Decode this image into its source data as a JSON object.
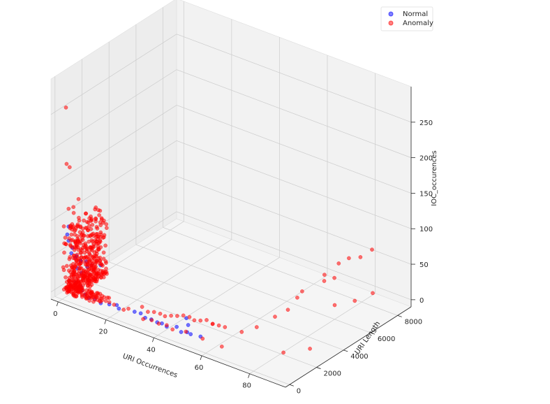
{
  "chart_data": {
    "type": "scatter",
    "title": "",
    "xlabel": "URI Occurrences",
    "ylabel": "URI Length",
    "zlabel": "IOC_occurences",
    "x_ticks": [
      "0",
      "20",
      "40",
      "60",
      "80"
    ],
    "y_ticks": [
      "0",
      "2000",
      "4000",
      "6000",
      "8000"
    ],
    "z_ticks": [
      "0",
      "50",
      "100",
      "150",
      "200",
      "250"
    ],
    "xlim": [
      -3,
      95
    ],
    "ylim": [
      -300,
      9000
    ],
    "zlim": [
      -10,
      300
    ],
    "legend": {
      "placement": "top-right",
      "entries": [
        "Normal",
        "Anomaly"
      ]
    },
    "colors": {
      "normal": "#0000ff",
      "anomaly": "#ff0000",
      "pane": "#f2f2f2",
      "grid": "#cccccc"
    },
    "series": [
      {
        "name": "Normal",
        "points": [
          [
            1,
            300,
            70
          ],
          [
            1,
            500,
            50
          ],
          [
            1,
            800,
            40
          ],
          [
            1,
            1200,
            30
          ],
          [
            1,
            1600,
            25
          ],
          [
            2,
            400,
            60
          ],
          [
            2,
            700,
            45
          ],
          [
            2,
            1000,
            35
          ],
          [
            2,
            1500,
            20
          ],
          [
            1,
            200,
            80
          ],
          [
            3,
            600,
            30
          ],
          [
            3,
            900,
            20
          ],
          [
            1,
            2000,
            15
          ],
          [
            2,
            2500,
            10
          ],
          [
            1,
            300,
            90
          ],
          [
            4,
            300,
            15
          ],
          [
            5,
            500,
            8
          ],
          [
            6,
            400,
            5
          ],
          [
            8,
            300,
            3
          ],
          [
            10,
            200,
            2
          ],
          [
            12,
            300,
            2
          ],
          [
            15,
            200,
            1
          ],
          [
            18,
            300,
            2
          ],
          [
            20,
            500,
            1
          ],
          [
            22,
            300,
            1
          ],
          [
            28,
            400,
            3
          ],
          [
            30,
            500,
            2
          ],
          [
            33,
            300,
            2
          ],
          [
            35,
            400,
            1
          ],
          [
            38,
            300,
            2
          ],
          [
            40,
            300,
            3
          ],
          [
            42,
            300,
            1
          ],
          [
            45,
            500,
            2
          ],
          [
            48,
            300,
            1
          ],
          [
            50,
            400,
            2
          ],
          [
            52,
            300,
            3
          ],
          [
            55,
            500,
            1
          ],
          [
            47,
            1000,
            1
          ],
          [
            44,
            1400,
            2
          ]
        ]
      },
      {
        "name": "Anomaly",
        "points": [
          [
            1,
            100,
            260
          ],
          [
            1,
            150,
            180
          ],
          [
            2,
            200,
            176
          ],
          [
            3,
            300,
            120
          ],
          [
            4,
            500,
            130
          ],
          [
            1,
            300,
            115
          ],
          [
            2,
            500,
            108
          ],
          [
            3,
            700,
            100
          ],
          [
            4,
            900,
            95
          ],
          [
            2,
            300,
            90
          ],
          [
            1,
            600,
            85
          ],
          [
            3,
            400,
            80
          ],
          [
            5,
            600,
            75
          ],
          [
            4,
            300,
            70
          ],
          [
            2,
            800,
            65
          ],
          [
            1,
            1000,
            60
          ],
          [
            3,
            1200,
            55
          ],
          [
            5,
            300,
            50
          ],
          [
            2,
            1500,
            45
          ],
          [
            4,
            1100,
            40
          ],
          [
            1,
            1800,
            35
          ],
          [
            3,
            2000,
            30
          ],
          [
            6,
            500,
            25
          ],
          [
            2,
            2200,
            20
          ],
          [
            5,
            1000,
            15
          ],
          [
            1,
            2600,
            10
          ],
          [
            4,
            1600,
            5
          ],
          [
            7,
            200,
            12
          ],
          [
            8,
            400,
            8
          ],
          [
            9,
            300,
            6
          ],
          [
            10,
            500,
            4
          ],
          [
            11,
            200,
            5
          ],
          [
            12,
            400,
            3
          ],
          [
            13,
            300,
            2
          ],
          [
            14,
            300,
            6
          ],
          [
            15,
            300,
            4
          ],
          [
            16,
            400,
            3
          ],
          [
            18,
            300,
            5
          ],
          [
            20,
            300,
            4
          ],
          [
            24,
            300,
            2
          ],
          [
            26,
            300,
            6
          ],
          [
            30,
            600,
            10
          ],
          [
            33,
            500,
            8
          ],
          [
            35,
            600,
            9
          ],
          [
            37,
            700,
            8
          ],
          [
            39,
            700,
            7
          ],
          [
            41,
            800,
            9
          ],
          [
            43,
            900,
            10
          ],
          [
            45,
            1000,
            12
          ],
          [
            47,
            1100,
            11
          ],
          [
            49,
            1100,
            9
          ],
          [
            51,
            1200,
            10
          ],
          [
            53,
            1300,
            12
          ],
          [
            55,
            1400,
            8
          ],
          [
            57,
            1500,
            7
          ],
          [
            59,
            1600,
            6
          ],
          [
            33,
            150,
            2
          ],
          [
            36,
            250,
            3
          ],
          [
            39,
            250,
            2
          ],
          [
            42,
            300,
            3
          ],
          [
            45,
            200,
            2
          ],
          [
            50,
            300,
            4
          ],
          [
            57,
            300,
            3
          ],
          [
            65,
            300,
            2
          ],
          [
            66,
            1600,
            8
          ],
          [
            70,
            2000,
            15
          ],
          [
            72,
            3000,
            20
          ],
          [
            74,
            3600,
            25
          ],
          [
            76,
            4300,
            45
          ],
          [
            78,
            5600,
            55
          ],
          [
            80,
            6300,
            65
          ],
          [
            82,
            6700,
            70
          ],
          [
            84,
            7200,
            68
          ],
          [
            86,
            7700,
            75
          ],
          [
            80,
            6000,
            10
          ],
          [
            85,
            6600,
            15
          ],
          [
            88,
            7400,
            20
          ],
          [
            84,
            1500,
            3
          ],
          [
            90,
            2400,
            5
          ],
          [
            70,
            5000,
            20
          ],
          [
            60,
            500,
            25
          ],
          [
            79,
            5400,
            50
          ],
          [
            81,
            5800,
            52
          ]
        ]
      }
    ]
  }
}
